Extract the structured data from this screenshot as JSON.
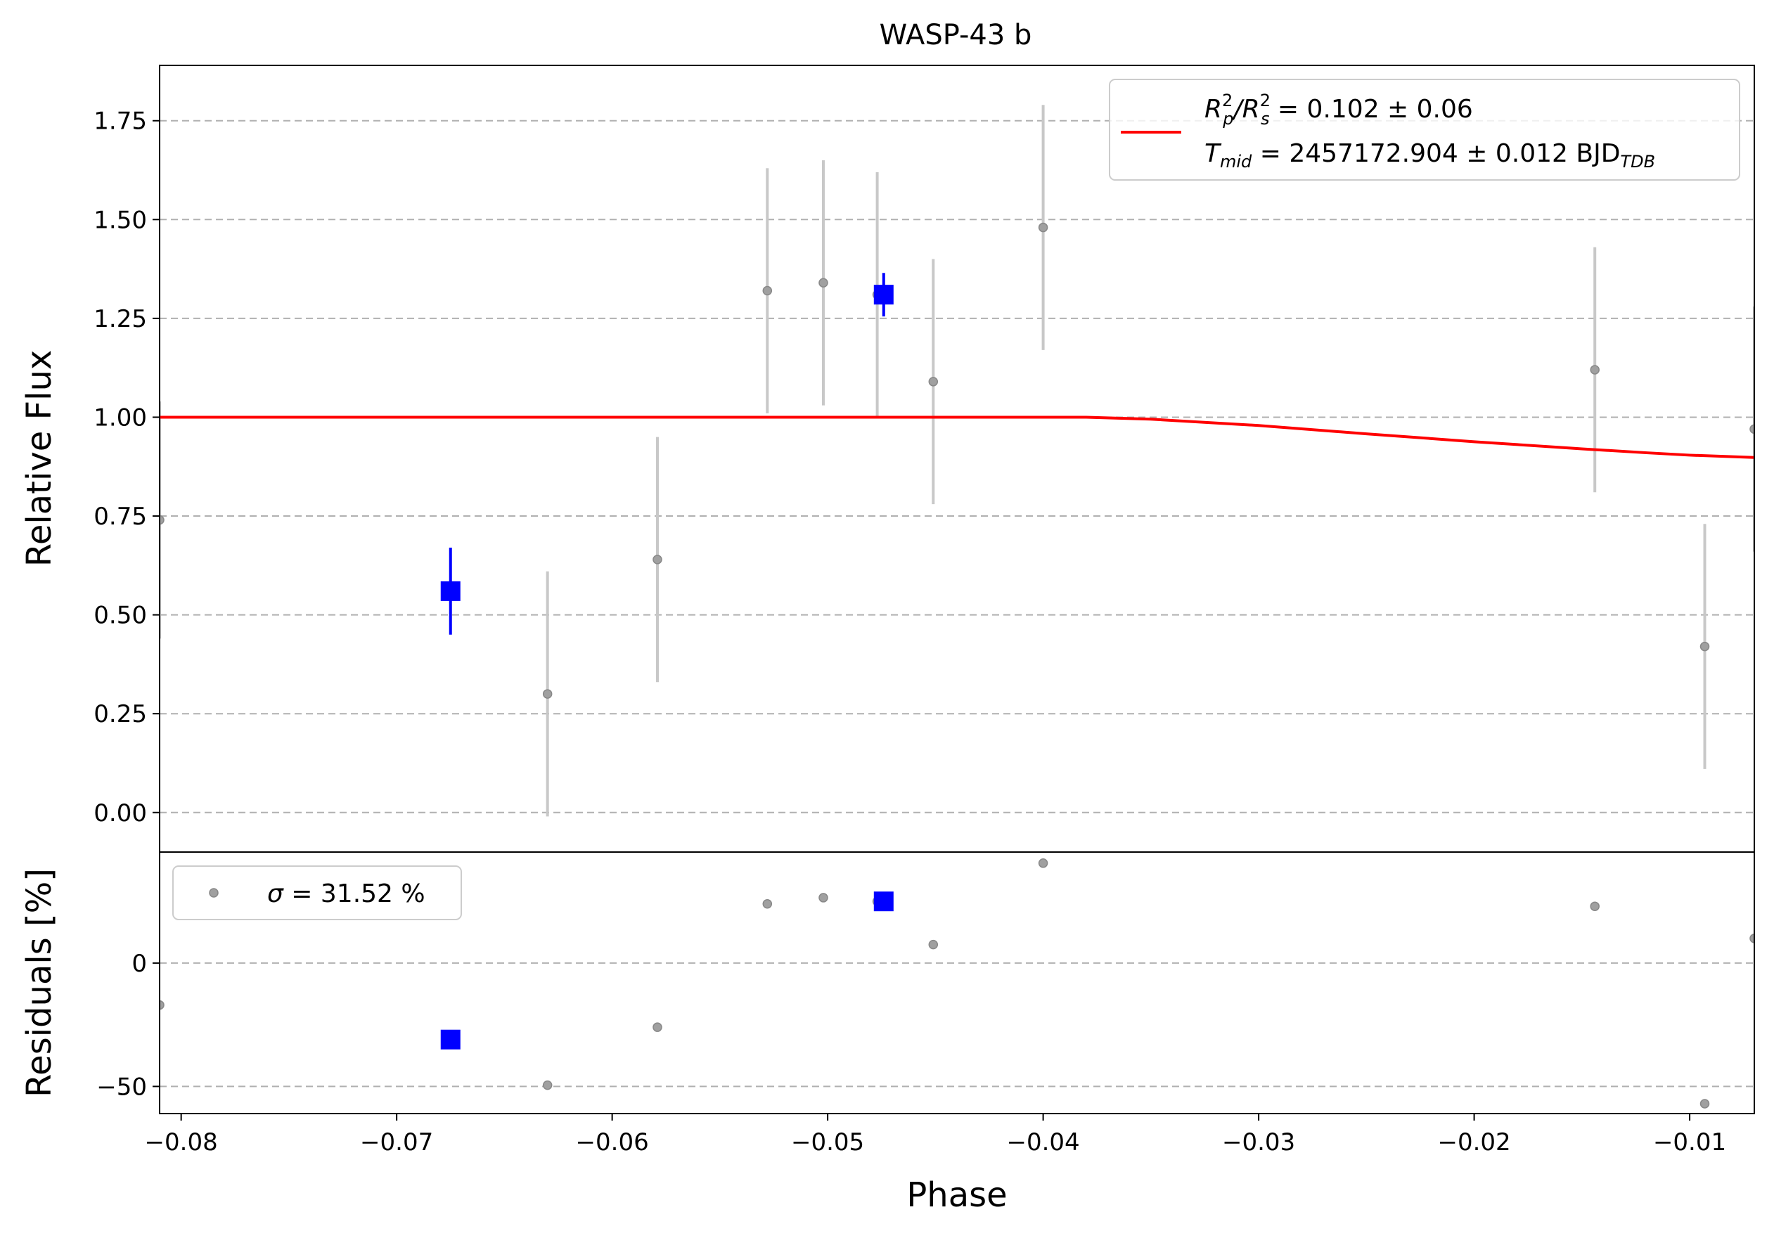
{
  "chart_data": [
    {
      "panel": "main",
      "type": "scatter",
      "title": "WASP-43 b",
      "xlabel": "",
      "ylabel": "Relative Flux",
      "xlim": [
        -0.081,
        -0.007
      ],
      "ylim": [
        -0.1,
        1.89
      ],
      "grid": "horizontal-dashed",
      "yticks": [
        0.0,
        0.25,
        0.5,
        0.75,
        1.0,
        1.25,
        1.5,
        1.75
      ],
      "ytick_labels": [
        "0.00",
        "0.25",
        "0.50",
        "0.75",
        "1.00",
        "1.25",
        "1.50",
        "1.75"
      ],
      "legend_position": "top-right",
      "legend": {
        "rp_rs": {
          "main": "R",
          "sup1": "2",
          "sub1": "p",
          "slash": "/R",
          "sup2": "2",
          "sub2": "s",
          "value": " = 0.102 ± 0.06"
        },
        "tmid": {
          "main": "T",
          "sub": "mid",
          "value": " = 2457172.904 ± 0.012 BJD",
          "unit_sub": "TDB"
        }
      },
      "raw_points": [
        {
          "x": -0.081,
          "y": 0.74,
          "yerr": 0.3
        },
        {
          "x": -0.063,
          "y": 0.3,
          "yerr": 0.31
        },
        {
          "x": -0.0579,
          "y": 0.64,
          "yerr": 0.31
        },
        {
          "x": -0.0528,
          "y": 1.32,
          "yerr": 0.31
        },
        {
          "x": -0.0502,
          "y": 1.34,
          "yerr": 0.31
        },
        {
          "x": -0.0477,
          "y": 1.31,
          "yerr": 0.31
        },
        {
          "x": -0.0451,
          "y": 1.09,
          "yerr": 0.31
        },
        {
          "x": -0.04,
          "y": 1.48,
          "yerr": 0.31
        },
        {
          "x": -0.0144,
          "y": 1.12,
          "yerr": 0.31
        },
        {
          "x": -0.0093,
          "y": 0.42,
          "yerr": 0.31
        },
        {
          "x": -0.007,
          "y": 0.97,
          "yerr": 0.31
        }
      ],
      "binned_points": [
        {
          "x": -0.0675,
          "y": 0.56,
          "yerr": 0.11
        },
        {
          "x": -0.0474,
          "y": 1.31,
          "yerr": 0.055
        }
      ],
      "model": {
        "x": [
          -0.081,
          -0.038,
          -0.035,
          -0.03,
          -0.025,
          -0.02,
          -0.015,
          -0.012,
          -0.01,
          -0.007
        ],
        "y": [
          1.0,
          1.0,
          0.995,
          0.979,
          0.958,
          0.938,
          0.92,
          0.91,
          0.904,
          0.898
        ]
      },
      "colors": {
        "raw": "#a0a0a0",
        "errorbar": "#c8c8c8",
        "binned": "#0000ff",
        "model": "#ff0000",
        "grid": "#b0b0b0"
      }
    },
    {
      "panel": "residuals",
      "type": "scatter",
      "xlabel": "Phase",
      "ylabel": "Residuals [%]",
      "xlim": [
        -0.081,
        -0.007
      ],
      "ylim": [
        -61,
        45
      ],
      "grid": "horizontal-dashed",
      "yticks": [
        -50,
        0
      ],
      "ytick_labels": [
        "−50",
        "0"
      ],
      "xticks": [
        -0.08,
        -0.07,
        -0.06,
        -0.05,
        -0.04,
        -0.03,
        -0.02,
        -0.01
      ],
      "xtick_labels": [
        "−0.08",
        "−0.07",
        "−0.06",
        "−0.05",
        "−0.04",
        "−0.03",
        "−0.02",
        "−0.01"
      ],
      "legend_position": "top-left",
      "legend": {
        "sigma": "σ",
        "value": " = 31.52 %"
      },
      "raw_points": [
        {
          "x": -0.081,
          "y": -17
        },
        {
          "x": -0.063,
          "y": -49.5
        },
        {
          "x": -0.0579,
          "y": -26
        },
        {
          "x": -0.0528,
          "y": 24
        },
        {
          "x": -0.0502,
          "y": 26.5
        },
        {
          "x": -0.0477,
          "y": 25
        },
        {
          "x": -0.0451,
          "y": 7.5
        },
        {
          "x": -0.04,
          "y": 40.5
        },
        {
          "x": -0.0144,
          "y": 23
        },
        {
          "x": -0.0093,
          "y": -57
        },
        {
          "x": -0.007,
          "y": 10
        }
      ],
      "binned_points": [
        {
          "x": -0.0675,
          "y": -31
        },
        {
          "x": -0.0474,
          "y": 25
        }
      ]
    }
  ]
}
